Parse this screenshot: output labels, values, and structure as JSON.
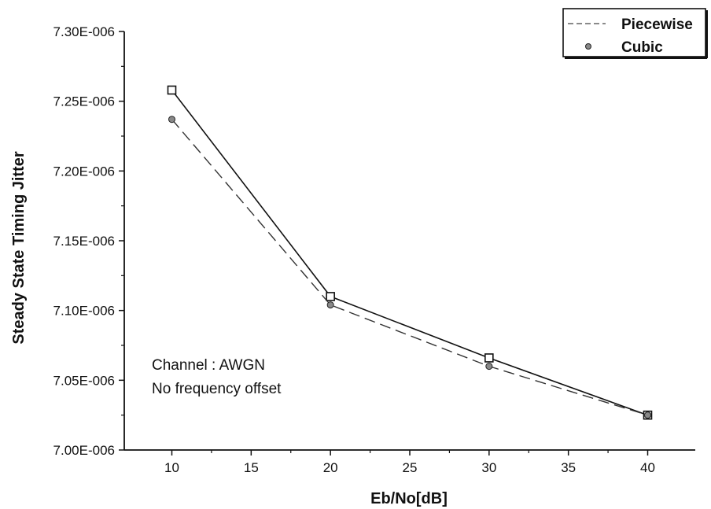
{
  "chart_data": {
    "type": "line",
    "title": "",
    "xlabel": "Eb/No[dB]",
    "ylabel": "Steady State Timing Jitter",
    "xlim": [
      7,
      43
    ],
    "ylim": [
      7e-06,
      7.3e-06
    ],
    "x_ticks": [
      10,
      15,
      20,
      25,
      30,
      35,
      40
    ],
    "x_tick_labels": [
      "10",
      "15",
      "20",
      "25",
      "30",
      "35",
      "40"
    ],
    "y_ticks": [
      7e-06,
      7.05e-06,
      7.1e-06,
      7.15e-06,
      7.2e-06,
      7.25e-06,
      7.3e-06
    ],
    "y_tick_labels": [
      "7.00E-006",
      "7.05E-006",
      "7.10E-006",
      "7.15E-006",
      "7.20E-006",
      "7.25E-006",
      "7.30E-006"
    ],
    "grid": false,
    "legend_position": "top-right",
    "x": [
      10,
      20,
      30,
      40
    ],
    "series": [
      {
        "name": "Piecewise",
        "marker": "square",
        "line": "solid",
        "values": [
          7.258e-06,
          7.11e-06,
          7.066e-06,
          7.025e-06
        ]
      },
      {
        "name": "Cubic",
        "marker": "circle",
        "line": "dashed",
        "values": [
          7.237e-06,
          7.104e-06,
          7.06e-06,
          7.025e-06
        ]
      }
    ],
    "annotations": [
      "Channel : AWGN",
      "No frequency offset"
    ]
  },
  "colors": {
    "ink": "#111111",
    "background": "#ffffff"
  }
}
